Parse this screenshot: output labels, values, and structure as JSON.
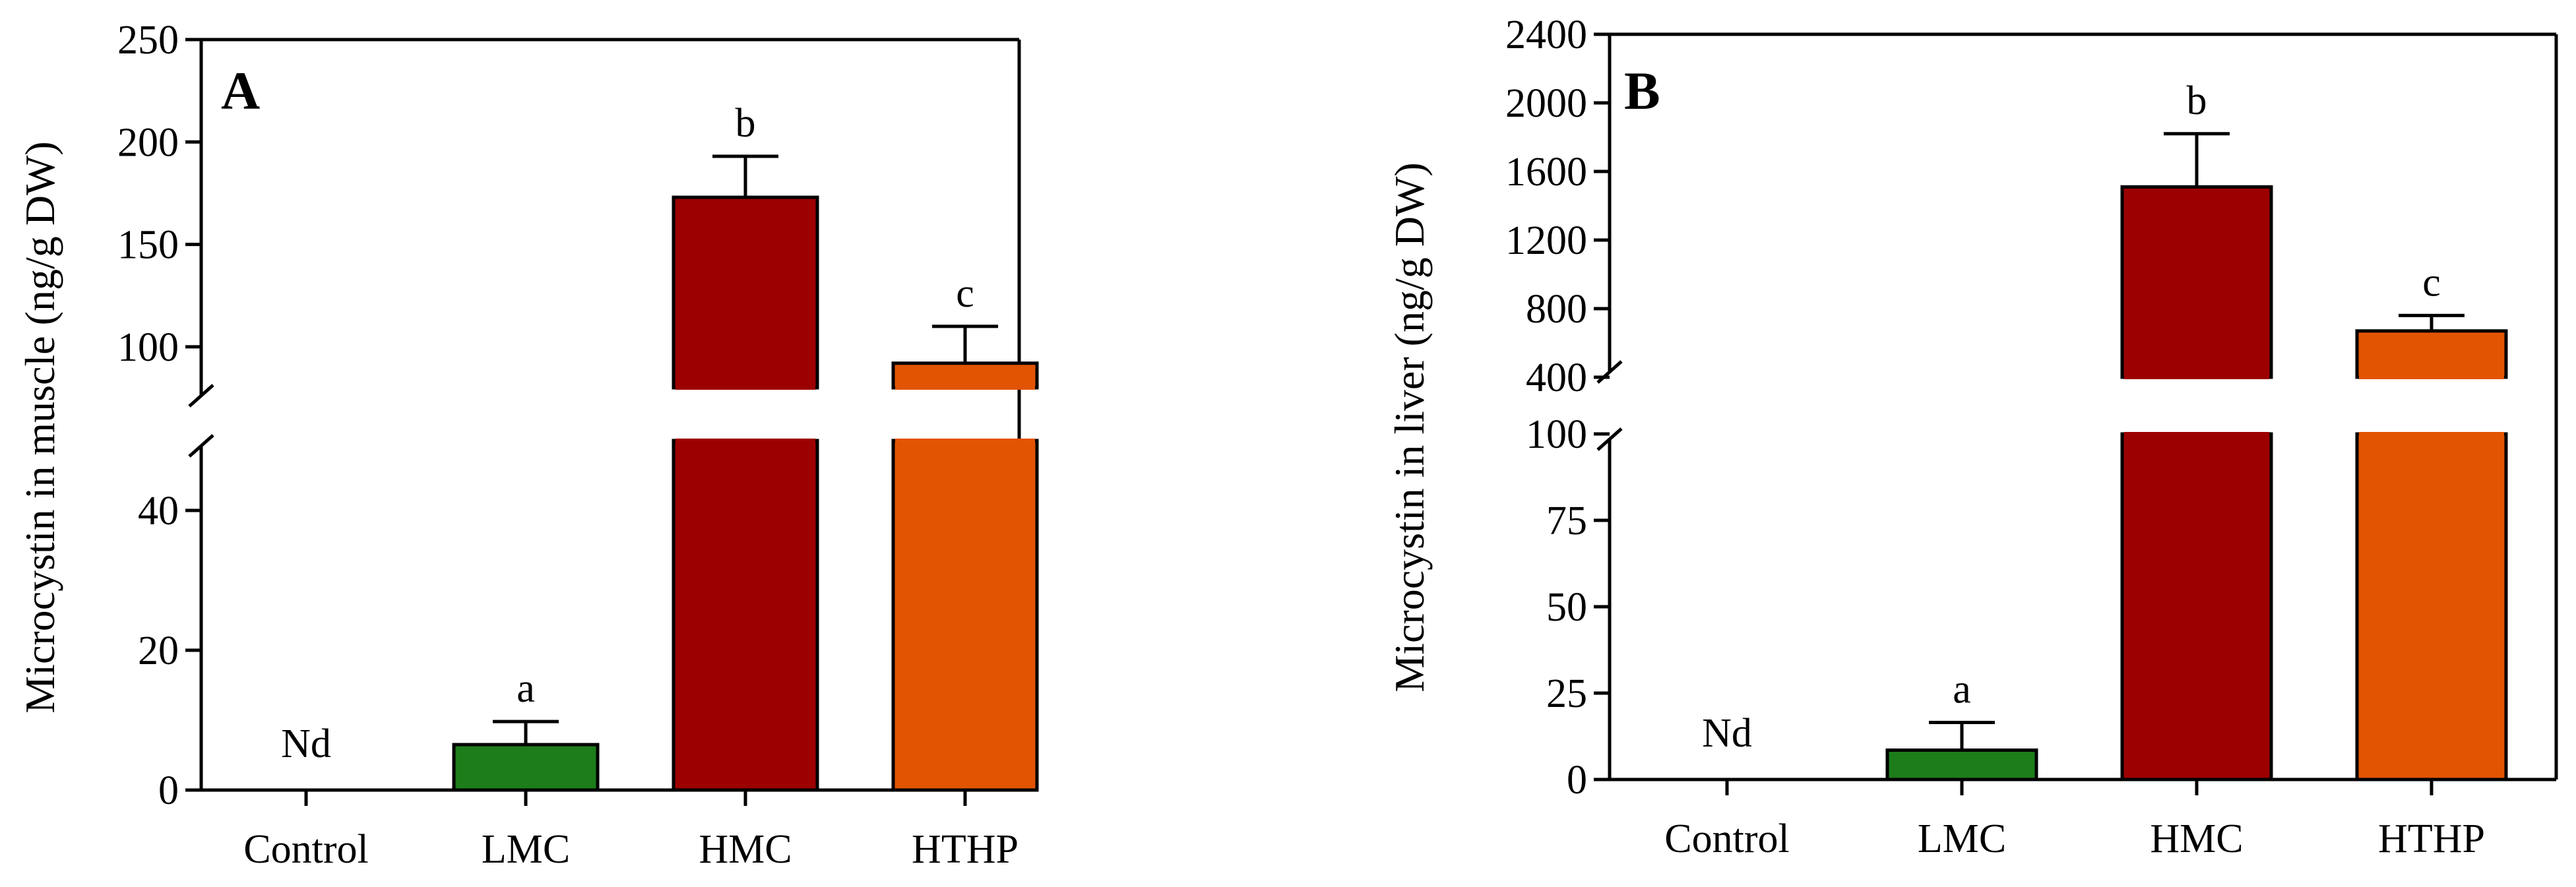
{
  "colors": {
    "Control": "#ffffff",
    "LMC": "#1d7d1a",
    "HMC": "#9c0000",
    "HTHP": "#e25402"
  },
  "chart_data": [
    {
      "type": "bar",
      "panel": "A",
      "ylabel": "Microcystin in muscle (ng/g DW)",
      "categories": [
        "Control",
        "LMC",
        "HMC",
        "HTHP"
      ],
      "values": [
        0,
        6.5,
        173,
        92
      ],
      "errors": [
        0,
        3.3,
        20,
        18
      ],
      "significance": [
        "",
        "a",
        "b",
        "c"
      ],
      "annotations": [
        "Nd",
        "",
        "",
        ""
      ],
      "axis_break": {
        "lower_range": [
          0,
          50
        ],
        "upper_range": [
          80,
          250
        ],
        "lower_ticks": [
          0,
          20,
          40
        ],
        "upper_ticks": [
          100,
          150,
          200,
          250
        ]
      }
    },
    {
      "type": "bar",
      "panel": "B",
      "ylabel": "Microcystin in liver (ng/g DW)",
      "categories": [
        "Control",
        "LMC",
        "HMC",
        "HTHP"
      ],
      "values": [
        0,
        8.5,
        1510,
        670
      ],
      "errors": [
        0,
        8,
        310,
        90
      ],
      "significance": [
        "",
        "a",
        "b",
        "c"
      ],
      "annotations": [
        "Nd",
        "",
        "",
        ""
      ],
      "axis_break": {
        "lower_range": [
          0,
          100
        ],
        "upper_range": [
          400,
          2400
        ],
        "lower_ticks": [
          0,
          25,
          50,
          75,
          100
        ],
        "upper_ticks": [
          400,
          800,
          1200,
          1600,
          2000,
          2400
        ]
      }
    }
  ]
}
